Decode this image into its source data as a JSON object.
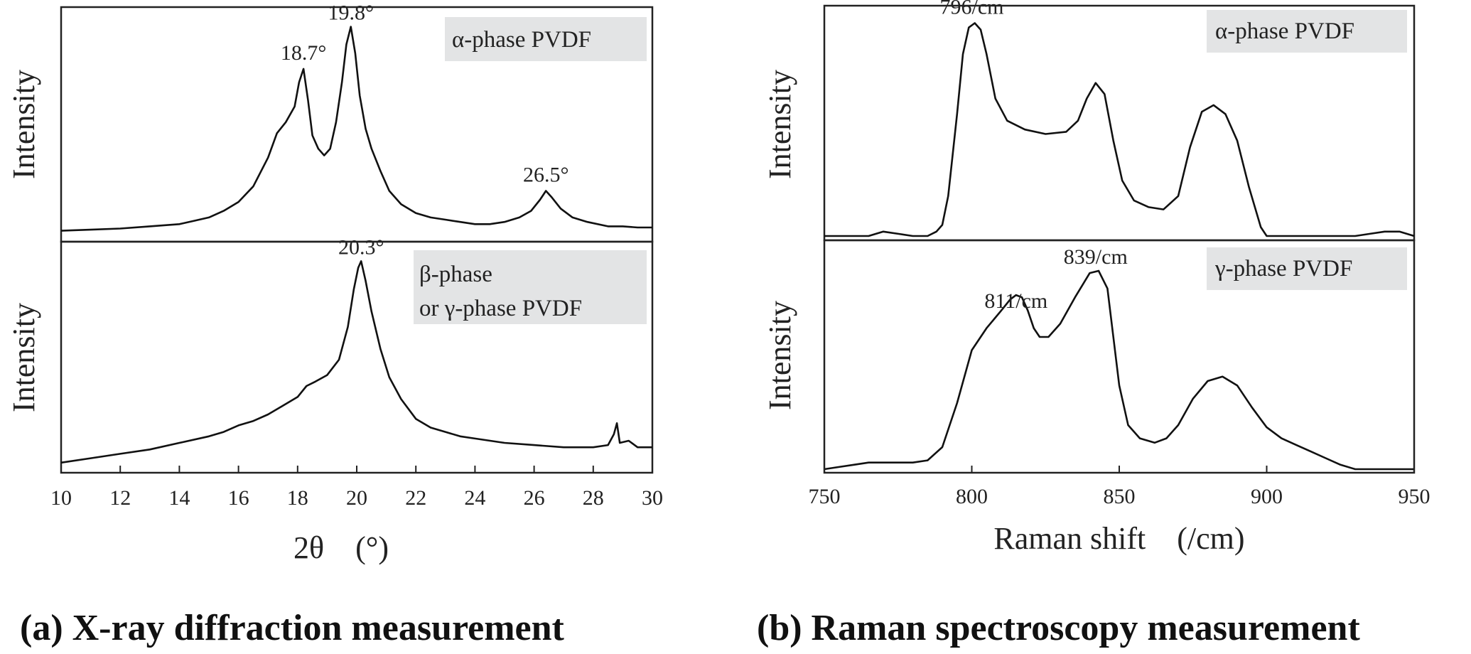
{
  "chart_data": [
    {
      "type": "line",
      "caption": "(a) X-ray diffraction measurement",
      "xlabel": "2θ　(°)",
      "ylabel": "Intensity",
      "xlim": [
        10,
        30
      ],
      "xticks": [
        "10",
        "12",
        "14",
        "16",
        "18",
        "20",
        "22",
        "24",
        "26",
        "28",
        "30"
      ],
      "grid": false,
      "panels": [
        {
          "label_lines": [
            "α-phase PVDF"
          ],
          "ylim": [
            0,
            1
          ],
          "annotations": [
            {
              "text": "18.7°",
              "x": 18.2,
              "y": 0.77
            },
            {
              "text": "19.8°",
              "x": 19.8,
              "y": 0.95
            },
            {
              "text": "26.5°",
              "x": 26.4,
              "y": 0.22
            }
          ],
          "series": [
            {
              "x": [
                10.0,
                11.0,
                12.0,
                13.0,
                14.0,
                14.5,
                15.0,
                15.5,
                16.0,
                16.5,
                17.0,
                17.3,
                17.6,
                17.9,
                18.05,
                18.2,
                18.35,
                18.5,
                18.7,
                18.9,
                19.1,
                19.3,
                19.5,
                19.65,
                19.8,
                19.95,
                20.1,
                20.3,
                20.5,
                20.8,
                21.1,
                21.5,
                22.0,
                22.5,
                23.0,
                23.5,
                24.0,
                24.5,
                25.0,
                25.5,
                25.9,
                26.2,
                26.4,
                26.6,
                26.9,
                27.3,
                27.8,
                28.5,
                29.0,
                29.5,
                30.0
              ],
              "y": [
                0.03,
                0.035,
                0.04,
                0.05,
                0.06,
                0.075,
                0.09,
                0.12,
                0.16,
                0.23,
                0.36,
                0.47,
                0.52,
                0.59,
                0.7,
                0.76,
                0.62,
                0.46,
                0.4,
                0.37,
                0.4,
                0.52,
                0.7,
                0.87,
                0.95,
                0.83,
                0.64,
                0.49,
                0.4,
                0.3,
                0.21,
                0.15,
                0.11,
                0.09,
                0.08,
                0.07,
                0.06,
                0.06,
                0.07,
                0.09,
                0.12,
                0.17,
                0.21,
                0.18,
                0.13,
                0.09,
                0.07,
                0.05,
                0.05,
                0.045,
                0.045
              ]
            }
          ]
        },
        {
          "label_lines": [
            "β-phase",
            "or γ-phase PVDF"
          ],
          "ylim": [
            0,
            1
          ],
          "annotations": [
            {
              "text": "20.3°",
              "x": 20.15,
              "y": 0.95
            }
          ],
          "series": [
            {
              "x": [
                10.0,
                11.0,
                12.0,
                13.0,
                14.0,
                15.0,
                15.5,
                16.0,
                16.5,
                17.0,
                17.5,
                18.0,
                18.3,
                18.6,
                19.0,
                19.4,
                19.7,
                19.9,
                20.05,
                20.15,
                20.3,
                20.5,
                20.8,
                21.1,
                21.5,
                22.0,
                22.5,
                23.0,
                23.5,
                24.0,
                25.0,
                26.0,
                27.0,
                28.0,
                28.5,
                28.7,
                28.8,
                28.9,
                29.2,
                29.5,
                30.0
              ],
              "y": [
                0.03,
                0.05,
                0.07,
                0.09,
                0.12,
                0.15,
                0.17,
                0.2,
                0.22,
                0.25,
                0.29,
                0.33,
                0.38,
                0.4,
                0.43,
                0.5,
                0.65,
                0.82,
                0.92,
                0.95,
                0.86,
                0.72,
                0.55,
                0.42,
                0.32,
                0.23,
                0.19,
                0.17,
                0.15,
                0.14,
                0.12,
                0.11,
                0.1,
                0.1,
                0.11,
                0.16,
                0.21,
                0.12,
                0.13,
                0.1,
                0.1
              ]
            }
          ]
        }
      ]
    },
    {
      "type": "line",
      "caption": "(b) Raman spectroscopy measurement",
      "xlabel": "Raman shift　(/cm)",
      "ylabel": "Intensity",
      "xlim": [
        750,
        950
      ],
      "xticks": [
        "750",
        "800",
        "850",
        "900",
        "950"
      ],
      "grid": false,
      "panels": [
        {
          "label_lines": [
            "α-phase PVDF"
          ],
          "ylim": [
            0,
            1
          ],
          "annotations": [
            {
              "text": "796/cm",
              "x": 800,
              "y": 0.97
            }
          ],
          "series": [
            {
              "x": [
                750,
                760,
                765,
                770,
                775,
                780,
                785,
                788,
                790,
                792,
                795,
                797,
                799,
                801,
                803,
                805,
                808,
                812,
                818,
                825,
                832,
                836,
                839,
                842,
                845,
                848,
                851,
                855,
                860,
                865,
                870,
                874,
                878,
                882,
                886,
                890,
                894,
                898,
                900,
                905,
                910,
                920,
                930,
                935,
                940,
                945,
                950
              ],
              "y": [
                0.0,
                0.0,
                0.0,
                0.02,
                0.01,
                0.0,
                0.0,
                0.02,
                0.05,
                0.18,
                0.55,
                0.82,
                0.94,
                0.96,
                0.93,
                0.82,
                0.62,
                0.52,
                0.48,
                0.46,
                0.47,
                0.52,
                0.62,
                0.69,
                0.64,
                0.43,
                0.25,
                0.16,
                0.13,
                0.12,
                0.18,
                0.4,
                0.56,
                0.59,
                0.55,
                0.43,
                0.22,
                0.04,
                0.0,
                0.0,
                0.0,
                0.0,
                0.0,
                0.01,
                0.02,
                0.02,
                0.0
              ]
            }
          ]
        },
        {
          "label_lines": [
            "γ-phase PVDF"
          ],
          "ylim": [
            0,
            1
          ],
          "annotations": [
            {
              "text": "811/cm",
              "x": 815,
              "y": 0.7
            },
            {
              "text": "839/cm",
              "x": 842,
              "y": 0.9
            }
          ],
          "series": [
            {
              "x": [
                750,
                755,
                760,
                765,
                770,
                775,
                780,
                785,
                790,
                795,
                800,
                805,
                810,
                813,
                815,
                817,
                819,
                821,
                823,
                826,
                830,
                835,
                840,
                843,
                846,
                848,
                850,
                853,
                857,
                862,
                866,
                870,
                875,
                880,
                885,
                890,
                895,
                900,
                905,
                910,
                915,
                920,
                925,
                930,
                940,
                945,
                950
              ],
              "y": [
                0.0,
                0.01,
                0.02,
                0.03,
                0.03,
                0.03,
                0.03,
                0.04,
                0.1,
                0.3,
                0.54,
                0.64,
                0.72,
                0.77,
                0.79,
                0.78,
                0.72,
                0.64,
                0.6,
                0.6,
                0.66,
                0.78,
                0.89,
                0.9,
                0.82,
                0.6,
                0.38,
                0.2,
                0.14,
                0.12,
                0.14,
                0.2,
                0.32,
                0.4,
                0.42,
                0.38,
                0.28,
                0.19,
                0.14,
                0.11,
                0.08,
                0.05,
                0.02,
                0.0,
                0.0,
                0.0,
                0.0
              ]
            }
          ]
        }
      ]
    }
  ]
}
